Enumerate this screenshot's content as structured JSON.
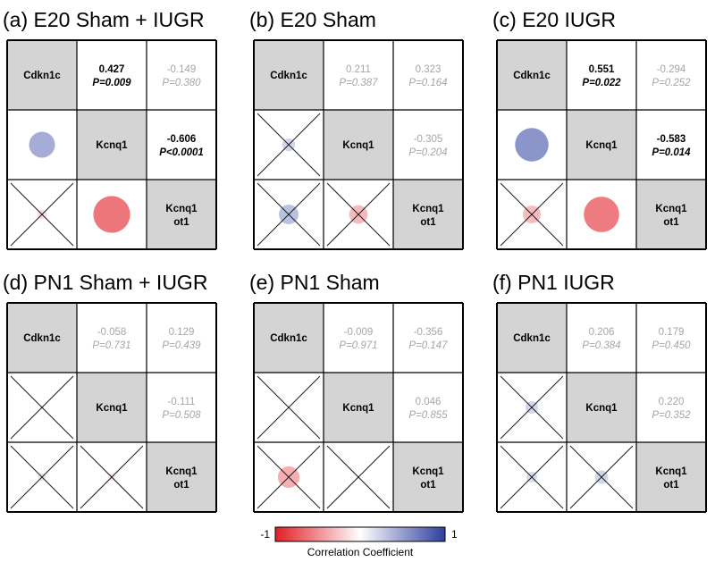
{
  "chart_data": {
    "type": "heatmap",
    "style": "correlogram",
    "variables": [
      "Cdkn1c",
      "Kcnq1",
      "Kcnq1 ot1"
    ],
    "diagonal_labels": [
      [
        "Cdkn1c"
      ],
      [
        "Kcnq1"
      ],
      [
        "Kcnq1",
        "ot1"
      ]
    ],
    "colorbar": {
      "label": "Correlation Coefficient",
      "min": -1,
      "max": 1,
      "min_label": "-1",
      "max_label": "1",
      "colors": [
        "#e21d25",
        "#ffffff",
        "#2d3e9e"
      ]
    },
    "panels": [
      {
        "title": "(a) E20 Sham + IUGR",
        "pairs": [
          {
            "row": 0,
            "col": 1,
            "r": 0.427,
            "r_text": "0.427",
            "p_text": "P=0.009",
            "significant": true
          },
          {
            "row": 0,
            "col": 2,
            "r": -0.149,
            "r_text": "-0.149",
            "p_text": "P=0.380",
            "significant": false
          },
          {
            "row": 1,
            "col": 2,
            "r": -0.606,
            "r_text": "-0.606",
            "p_text": "P<0.0001",
            "significant": true
          }
        ]
      },
      {
        "title": "(b) E20 Sham",
        "pairs": [
          {
            "row": 0,
            "col": 1,
            "r": 0.211,
            "r_text": "0.211",
            "p_text": "P=0.387",
            "significant": false
          },
          {
            "row": 0,
            "col": 2,
            "r": 0.323,
            "r_text": "0.323",
            "p_text": "P=0.164",
            "significant": false
          },
          {
            "row": 1,
            "col": 2,
            "r": -0.305,
            "r_text": "-0.305",
            "p_text": "P=0.204",
            "significant": false
          }
        ]
      },
      {
        "title": "(c) E20 IUGR",
        "pairs": [
          {
            "row": 0,
            "col": 1,
            "r": 0.551,
            "r_text": "0.551",
            "p_text": "P=0.022",
            "significant": true
          },
          {
            "row": 0,
            "col": 2,
            "r": -0.294,
            "r_text": "-0.294",
            "p_text": "P=0.252",
            "significant": false
          },
          {
            "row": 1,
            "col": 2,
            "r": -0.583,
            "r_text": "-0.583",
            "p_text": "P=0.014",
            "significant": true
          }
        ]
      },
      {
        "title": "(d) PN1 Sham + IUGR",
        "pairs": [
          {
            "row": 0,
            "col": 1,
            "r": -0.058,
            "r_text": "-0.058",
            "p_text": "P=0.731",
            "significant": false
          },
          {
            "row": 0,
            "col": 2,
            "r": 0.129,
            "r_text": "0.129",
            "p_text": "P=0.439",
            "significant": false
          },
          {
            "row": 1,
            "col": 2,
            "r": -0.111,
            "r_text": "-0.111",
            "p_text": "P=0.508",
            "significant": false
          }
        ]
      },
      {
        "title": "(e) PN1 Sham",
        "pairs": [
          {
            "row": 0,
            "col": 1,
            "r": -0.009,
            "r_text": "-0.009",
            "p_text": "P=0.971",
            "significant": false
          },
          {
            "row": 0,
            "col": 2,
            "r": -0.356,
            "r_text": "-0.356",
            "p_text": "P=0.147",
            "significant": false
          },
          {
            "row": 1,
            "col": 2,
            "r": 0.046,
            "r_text": "0.046",
            "p_text": "P=0.855",
            "significant": false
          }
        ]
      },
      {
        "title": "(f) PN1 IUGR",
        "pairs": [
          {
            "row": 0,
            "col": 1,
            "r": 0.206,
            "r_text": "0.206",
            "p_text": "P=0.384",
            "significant": false
          },
          {
            "row": 0,
            "col": 2,
            "r": 0.179,
            "r_text": "0.179",
            "p_text": "P=0.450",
            "significant": false
          },
          {
            "row": 1,
            "col": 2,
            "r": 0.22,
            "r_text": "0.220",
            "p_text": "P=0.352",
            "significant": false
          }
        ]
      }
    ]
  },
  "colors": {
    "diagonal_fill": "#d4d4d4",
    "significant_text": "#000000",
    "nonsignificant_text": "#a6a6a6",
    "cross": "#1a1a1a",
    "grid": "#000000"
  }
}
